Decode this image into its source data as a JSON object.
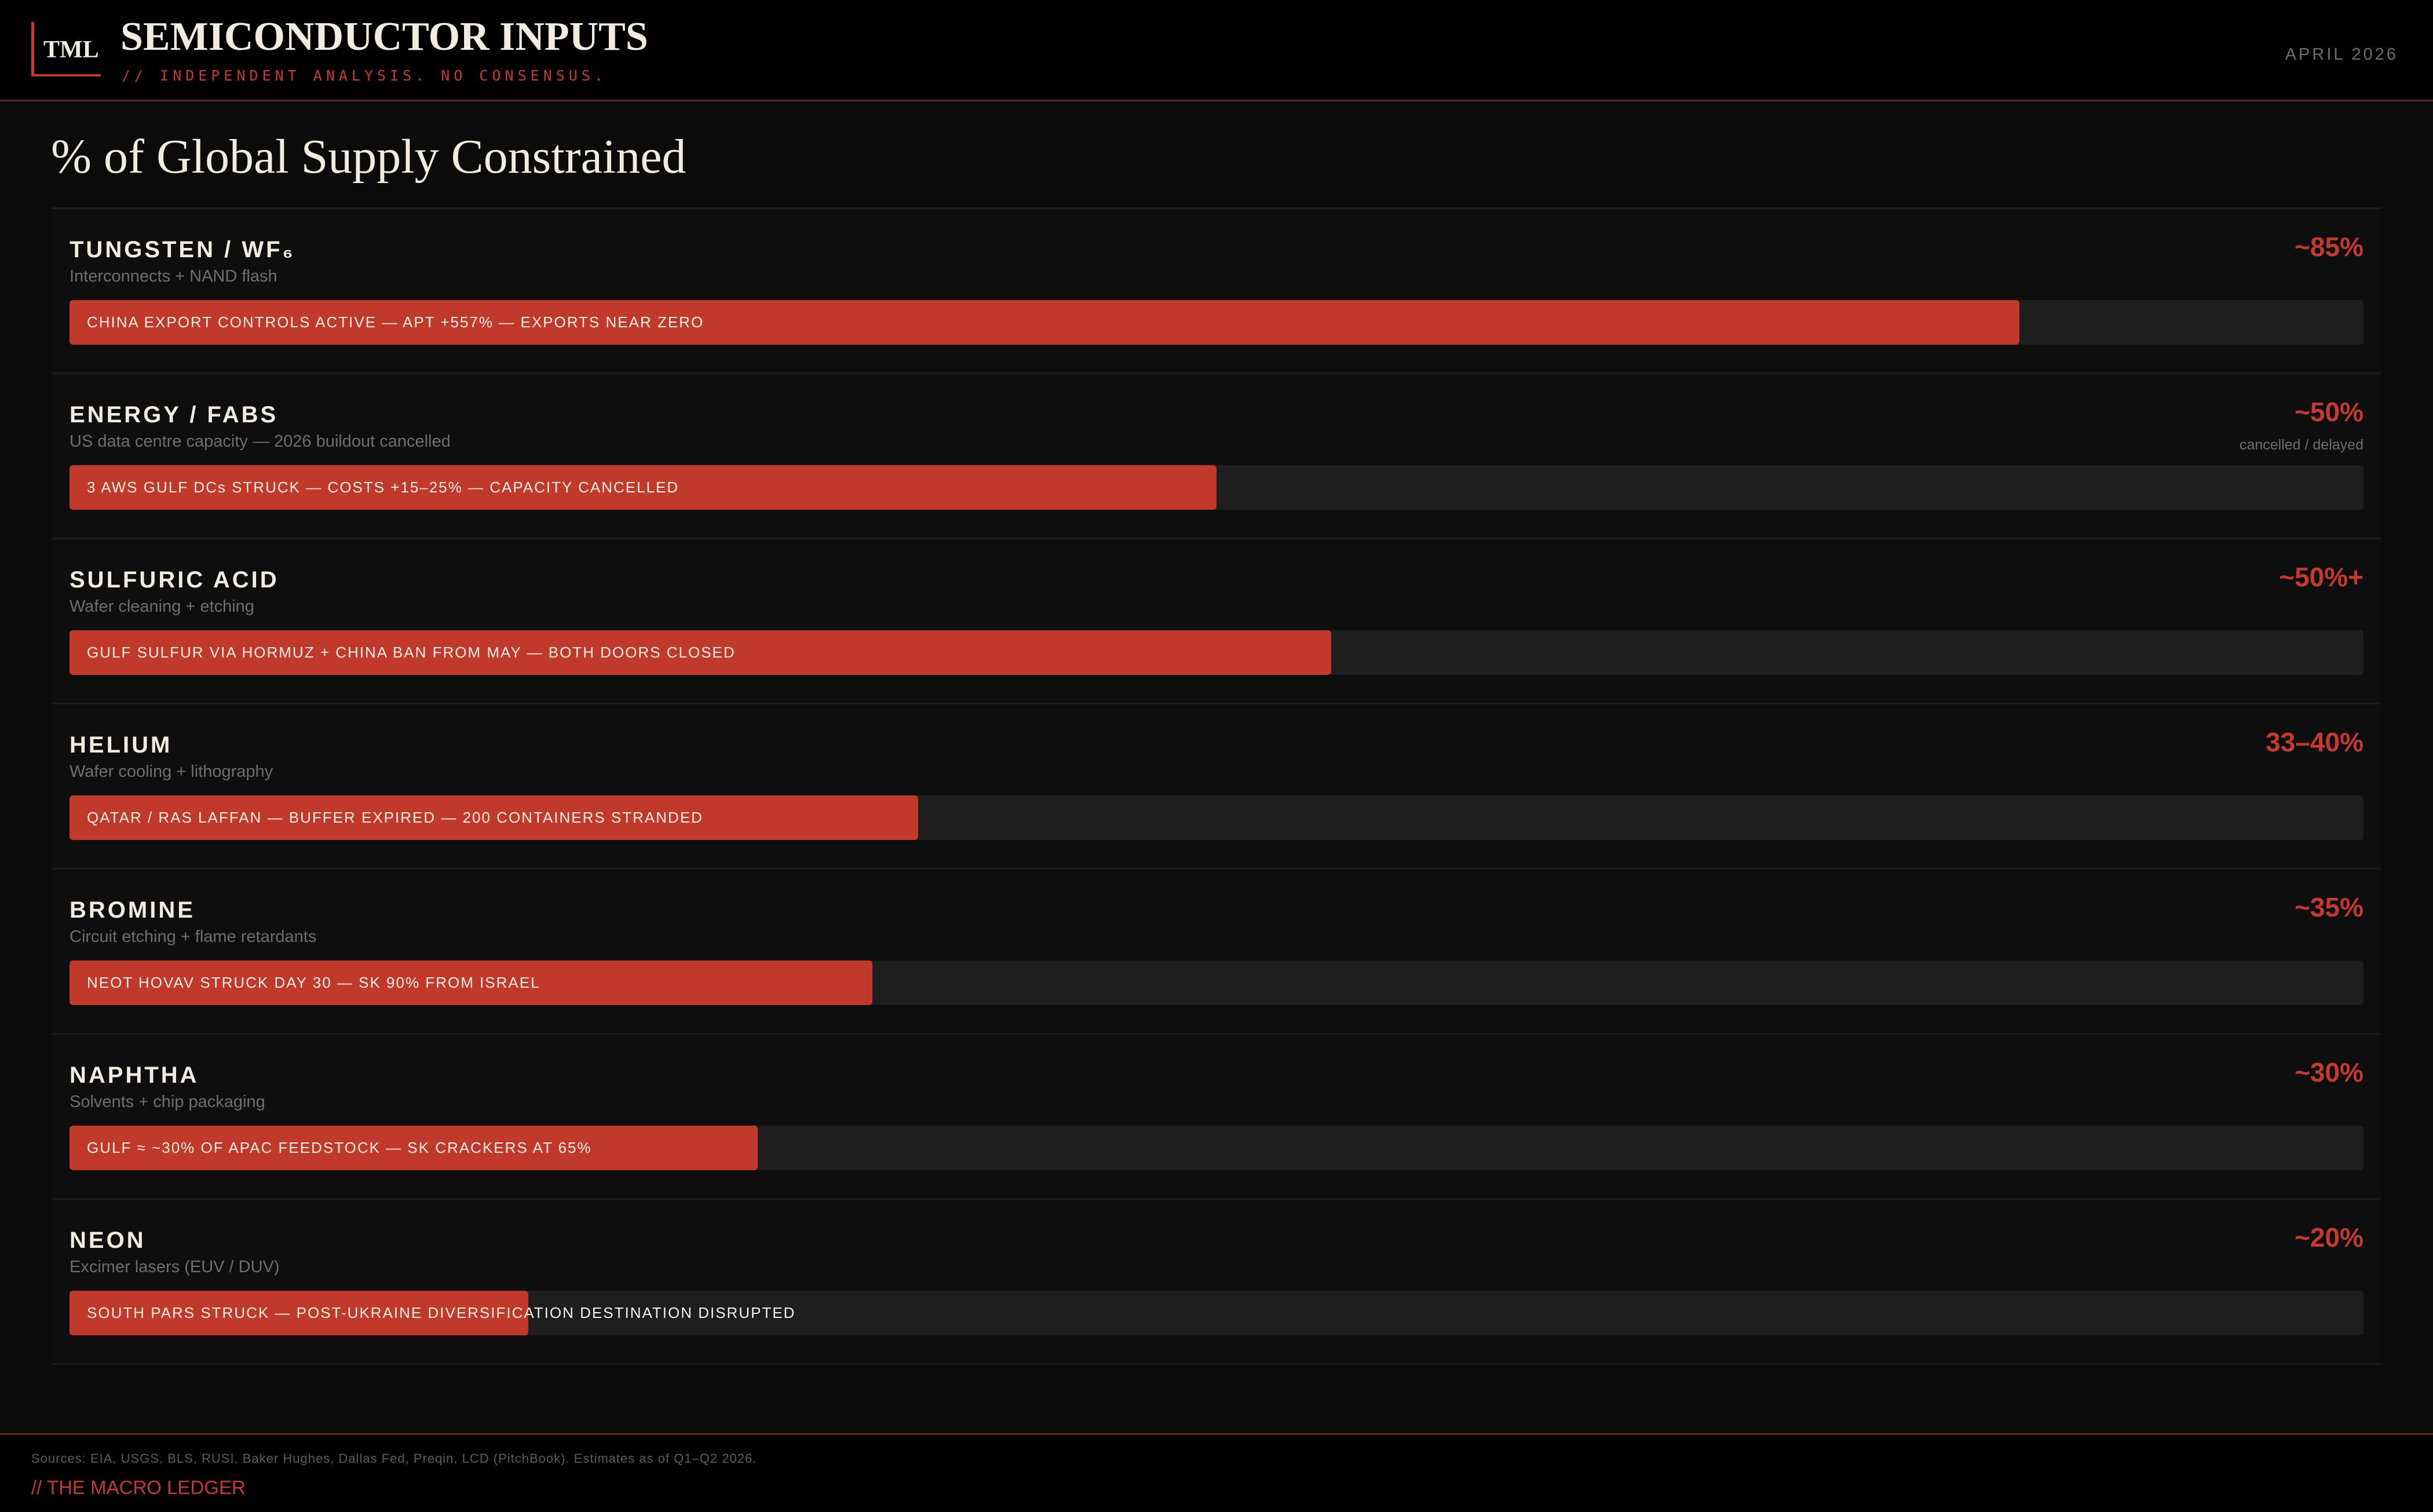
{
  "header": {
    "logo_text": "TML",
    "title": "SEMICONDUCTOR INPUTS",
    "subtitle": "// INDEPENDENT ANALYSIS. NO CONSENSUS.",
    "date": "APRIL 2026"
  },
  "chart_data": {
    "type": "bar",
    "orientation": "horizontal",
    "title": "% of Global Supply Constrained",
    "xlim": [
      0,
      100
    ],
    "colors": {
      "bar": "#c0392b",
      "track": "#1e1e1e",
      "value_text": "#c43a2e"
    },
    "items": [
      {
        "name": "TUNGSTEN / WF₆",
        "description": "Interconnects + NAND flash",
        "value": 85,
        "value_label": "~85%",
        "value_sublabel": "",
        "bar_label": "CHINA EXPORT CONTROLS ACTIVE — APT +557% — EXPORTS NEAR ZERO"
      },
      {
        "name": "ENERGY / FABS",
        "description": "US data centre capacity — 2026 buildout cancelled",
        "value": 50,
        "value_label": "~50%",
        "value_sublabel": "cancelled / delayed",
        "bar_label": "3 AWS GULF DCs STRUCK — COSTS +15–25% — CAPACITY CANCELLED"
      },
      {
        "name": "SULFURIC ACID",
        "description": "Wafer cleaning + etching",
        "value": 55,
        "value_label": "~50%+",
        "value_sublabel": "",
        "bar_label": "GULF SULFUR VIA HORMUZ + CHINA BAN FROM MAY — BOTH DOORS CLOSED"
      },
      {
        "name": "HELIUM",
        "description": "Wafer cooling + lithography",
        "value": 37,
        "value_label": "33–40%",
        "value_sublabel": "",
        "bar_label": "QATAR / RAS LAFFAN — BUFFER EXPIRED — 200 CONTAINERS STRANDED"
      },
      {
        "name": "BROMINE",
        "description": "Circuit etching + flame retardants",
        "value": 35,
        "value_label": "~35%",
        "value_sublabel": "",
        "bar_label": "NEOT HOVAV STRUCK DAY 30 — SK 90% FROM ISRAEL"
      },
      {
        "name": "NAPHTHA",
        "description": "Solvents + chip packaging",
        "value": 30,
        "value_label": "~30%",
        "value_sublabel": "",
        "bar_label": "GULF ≈ ~30% OF APAC FEEDSTOCK — SK CRACKERS AT 65%"
      },
      {
        "name": "NEON",
        "description": "Excimer lasers (EUV / DUV)",
        "value": 20,
        "value_label": "~20%",
        "value_sublabel": "",
        "bar_label": "SOUTH PARS STRUCK — POST-UKRAINE DIVERSIFICATION DESTINATION DISRUPTED"
      }
    ]
  },
  "footer": {
    "sources": "Sources: EIA, USGS, BLS, RUSI, Baker Hughes, Dallas Fed, Preqin, LCD (PitchBook). Estimates as of Q1–Q2 2026.",
    "brand": "// THE MACRO LEDGER"
  }
}
